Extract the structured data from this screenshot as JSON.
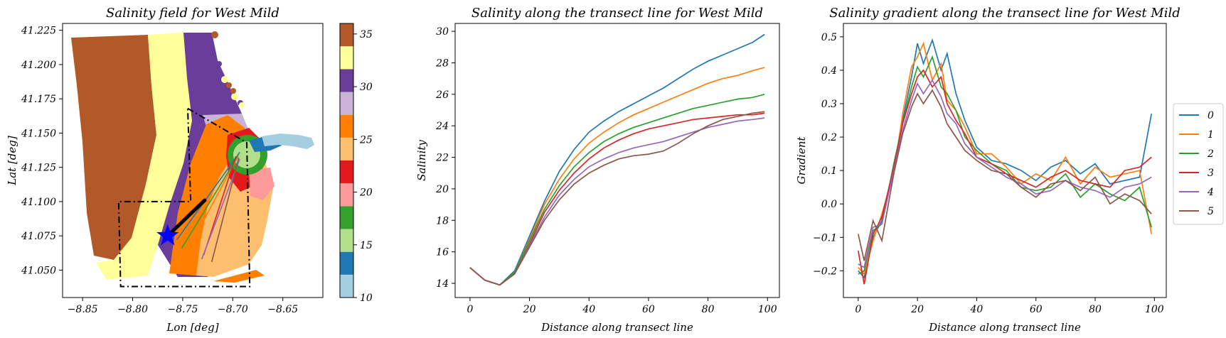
{
  "colors": {
    "blue": "#1f77b4",
    "orange": "#ff7f0e",
    "green": "#2ca02c",
    "red": "#d62728",
    "purple": "#9467bd",
    "brown": "#8c564b",
    "paired": [
      "#a6cee3",
      "#1f78b4",
      "#b2df8a",
      "#33a02c",
      "#fb9a99",
      "#e31a1c",
      "#fdbf6f",
      "#ff7f00",
      "#cab2d6",
      "#6a3d9a",
      "#ffff99",
      "#b15928"
    ]
  },
  "chart_data": [
    {
      "type": "heatmap",
      "title": "Salinity field for West Mild",
      "xlabel": "Lon [deg]",
      "ylabel": "Lat [deg]",
      "xlim": [
        -8.87,
        -8.61
      ],
      "ylim": [
        41.03,
        41.23
      ],
      "x_ticks": [
        "−8.85",
        "−8.80",
        "−8.75",
        "−8.70",
        "−8.65"
      ],
      "y_ticks": [
        "41.050",
        "41.075",
        "41.100",
        "41.125",
        "41.150",
        "41.175",
        "41.200",
        "41.225"
      ],
      "colorbar": {
        "range": [
          10,
          36
        ],
        "ticks": [
          "10",
          "15",
          "20",
          "25",
          "30",
          "35"
        ],
        "colormap": "Paired"
      },
      "polygons": [
        {
          "style": "dash-dot",
          "points": [
            [
              -8.745,
              41.168
            ],
            [
              -8.686,
              41.143
            ],
            [
              -8.683,
              41.038
            ],
            [
              -8.812,
              41.038
            ],
            [
              -8.814,
              41.1
            ],
            [
              -8.742,
              41.1
            ],
            [
              -8.745,
              41.168
            ]
          ]
        }
      ],
      "transect": {
        "from": [
          -8.765,
          41.075
        ],
        "to": [
          -8.728,
          41.101
        ]
      },
      "marker": {
        "shape": "star",
        "at": [
          -8.765,
          41.075
        ]
      },
      "fan_lines": [
        {
          "series": "0",
          "from": [
            -8.756,
            41.072
          ],
          "to": [
            -8.693,
            41.136
          ]
        },
        {
          "series": "1",
          "from": [
            -8.744,
            41.066
          ],
          "to": [
            -8.694,
            41.134
          ]
        },
        {
          "series": "2",
          "from": [
            -8.751,
            41.066
          ],
          "to": [
            -8.695,
            41.133
          ]
        },
        {
          "series": "3",
          "from": [
            -8.729,
            41.061
          ],
          "to": [
            -8.697,
            41.133
          ]
        },
        {
          "series": "4",
          "from": [
            -8.731,
            41.058
          ],
          "to": [
            -8.693,
            41.131
          ]
        },
        {
          "series": "5",
          "from": [
            -8.721,
            41.056
          ],
          "to": [
            -8.694,
            41.132
          ]
        }
      ]
    },
    {
      "type": "line",
      "title": "Salinity along the transect line for West Mild",
      "xlabel": "Distance along transect line",
      "ylabel": "Salinity",
      "xlim": [
        -5,
        104
      ],
      "ylim": [
        13.1,
        30.5
      ],
      "x_ticks": [
        "0",
        "20",
        "40",
        "60",
        "80",
        "100"
      ],
      "y_ticks": [
        "14",
        "16",
        "18",
        "20",
        "22",
        "24",
        "26",
        "28",
        "30"
      ],
      "x": [
        0,
        5,
        10,
        15,
        20,
        25,
        30,
        35,
        40,
        45,
        50,
        55,
        60,
        65,
        70,
        75,
        80,
        85,
        90,
        95,
        99
      ],
      "series": [
        {
          "name": "0",
          "values": [
            15.0,
            14.2,
            13.9,
            14.8,
            17.0,
            19.2,
            21.1,
            22.5,
            23.6,
            24.3,
            24.9,
            25.4,
            25.9,
            26.4,
            27.0,
            27.6,
            28.1,
            28.5,
            28.9,
            29.3,
            29.8
          ]
        },
        {
          "name": "1",
          "values": [
            15.0,
            14.2,
            13.9,
            14.7,
            16.8,
            19.0,
            20.6,
            21.9,
            22.9,
            23.6,
            24.2,
            24.7,
            25.1,
            25.5,
            25.9,
            26.3,
            26.7,
            27.0,
            27.2,
            27.5,
            27.7
          ]
        },
        {
          "name": "2",
          "values": [
            15.0,
            14.2,
            13.9,
            14.7,
            16.7,
            18.7,
            20.2,
            21.4,
            22.3,
            23.0,
            23.5,
            23.9,
            24.2,
            24.5,
            24.8,
            25.1,
            25.3,
            25.5,
            25.7,
            25.8,
            26.0
          ]
        },
        {
          "name": "3",
          "values": [
            15.0,
            14.2,
            13.9,
            14.6,
            16.5,
            18.5,
            19.9,
            21.0,
            21.9,
            22.6,
            23.1,
            23.5,
            23.8,
            24.0,
            24.2,
            24.4,
            24.5,
            24.6,
            24.7,
            24.7,
            24.8
          ]
        },
        {
          "name": "4",
          "values": [
            15.0,
            14.2,
            13.9,
            14.6,
            16.4,
            18.2,
            19.6,
            20.6,
            21.4,
            21.9,
            22.3,
            22.6,
            22.8,
            23.0,
            23.3,
            23.6,
            23.9,
            24.1,
            24.3,
            24.4,
            24.5
          ]
        },
        {
          "name": "5",
          "values": [
            15.0,
            14.2,
            13.9,
            14.6,
            16.3,
            18.0,
            19.3,
            20.3,
            21.0,
            21.5,
            21.9,
            22.1,
            22.2,
            22.4,
            22.9,
            23.5,
            24.0,
            24.4,
            24.6,
            24.8,
            24.9
          ]
        }
      ]
    },
    {
      "type": "line",
      "title": "Salinity gradient along the transect line for West Mild",
      "xlabel": "Distance along transect line",
      "ylabel": "Gradient",
      "xlim": [
        -5,
        104
      ],
      "ylim": [
        -0.28,
        0.54
      ],
      "x_ticks": [
        "0",
        "20",
        "40",
        "60",
        "80",
        "100"
      ],
      "y_ticks": [
        "−0.2",
        "−0.1",
        "0.0",
        "0.1",
        "0.2",
        "0.3",
        "0.4",
        "0.5"
      ],
      "legend": {
        "placement": "right",
        "entries": [
          "0",
          "1",
          "2",
          "3",
          "4",
          "5"
        ]
      },
      "x": [
        0,
        2,
        5,
        8,
        12,
        15,
        18,
        20,
        22,
        25,
        28,
        30,
        33,
        36,
        40,
        45,
        50,
        55,
        60,
        65,
        70,
        75,
        80,
        85,
        90,
        95,
        99
      ],
      "series": [
        {
          "name": "0",
          "values": [
            -0.2,
            -0.22,
            -0.1,
            -0.05,
            0.1,
            0.25,
            0.38,
            0.48,
            0.42,
            0.49,
            0.4,
            0.45,
            0.33,
            0.25,
            0.17,
            0.13,
            0.12,
            0.1,
            0.07,
            0.11,
            0.13,
            0.09,
            0.12,
            0.06,
            0.07,
            0.08,
            0.27
          ]
        },
        {
          "name": "1",
          "values": [
            -0.19,
            -0.21,
            -0.11,
            -0.03,
            0.09,
            0.27,
            0.41,
            0.44,
            0.48,
            0.37,
            0.42,
            0.31,
            0.28,
            0.23,
            0.15,
            0.15,
            0.11,
            0.06,
            0.09,
            0.07,
            0.14,
            0.06,
            0.11,
            0.08,
            0.09,
            0.1,
            -0.09
          ]
        },
        {
          "name": "2",
          "values": [
            -0.21,
            -0.2,
            -0.08,
            -0.06,
            0.12,
            0.24,
            0.35,
            0.41,
            0.38,
            0.44,
            0.35,
            0.33,
            0.28,
            0.2,
            0.16,
            0.12,
            0.1,
            0.05,
            0.04,
            0.05,
            0.09,
            0.02,
            0.06,
            0.03,
            0.01,
            0.05,
            -0.07
          ]
        },
        {
          "name": "3",
          "values": [
            -0.14,
            -0.24,
            -0.09,
            -0.04,
            0.11,
            0.24,
            0.33,
            0.38,
            0.4,
            0.35,
            0.38,
            0.3,
            0.25,
            0.21,
            0.14,
            0.12,
            0.09,
            0.07,
            0.05,
            0.08,
            0.1,
            0.07,
            0.06,
            0.05,
            0.1,
            0.11,
            0.14
          ]
        },
        {
          "name": "4",
          "values": [
            -0.18,
            -0.19,
            -0.07,
            -0.06,
            0.1,
            0.22,
            0.31,
            0.36,
            0.33,
            0.37,
            0.32,
            0.27,
            0.24,
            0.18,
            0.14,
            0.11,
            0.08,
            0.06,
            0.03,
            0.04,
            0.07,
            0.05,
            0.04,
            0.02,
            0.05,
            0.06,
            0.08
          ]
        },
        {
          "name": "5",
          "values": [
            -0.09,
            -0.17,
            -0.05,
            -0.11,
            0.09,
            0.21,
            0.29,
            0.33,
            0.3,
            0.34,
            0.29,
            0.24,
            0.2,
            0.16,
            0.13,
            0.1,
            0.09,
            0.05,
            0.02,
            0.06,
            0.07,
            0.04,
            0.08,
            0.0,
            0.03,
            0.01,
            -0.03
          ]
        }
      ]
    }
  ]
}
